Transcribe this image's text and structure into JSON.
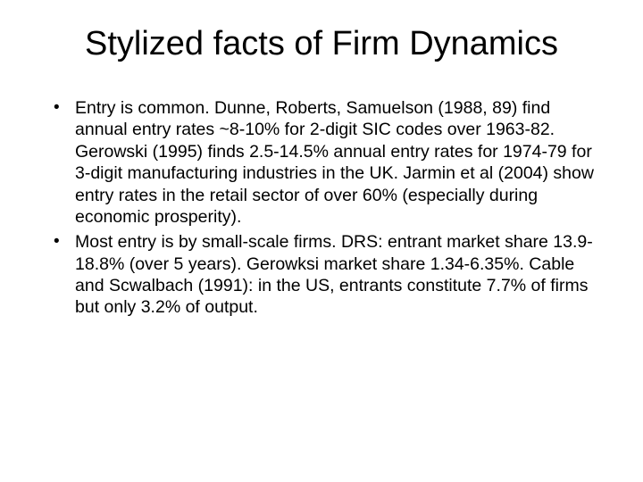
{
  "slide": {
    "title": "Stylized facts of Firm Dynamics",
    "title_fontsize": 38,
    "title_color": "#000000",
    "background_color": "#ffffff",
    "body_fontsize": 19.5,
    "body_color": "#000000",
    "bullets": [
      "Entry is common.  Dunne, Roberts, Samuelson (1988, 89) find annual entry rates ~8-10% for 2-digit SIC codes over 1963-82.  Gerowski (1995) finds 2.5-14.5% annual entry rates for 1974-79 for 3-digit manufacturing industries in the UK.  Jarmin et al (2004) show entry rates in the retail sector of over 60% (especially during economic prosperity).",
      "Most entry is by small-scale firms.  DRS: entrant market share 13.9-18.8% (over 5 years).  Gerowksi market share 1.34-6.35%.  Cable and Scwalbach (1991): in the US, entrants constitute 7.7% of firms but only 3.2% of output."
    ]
  }
}
